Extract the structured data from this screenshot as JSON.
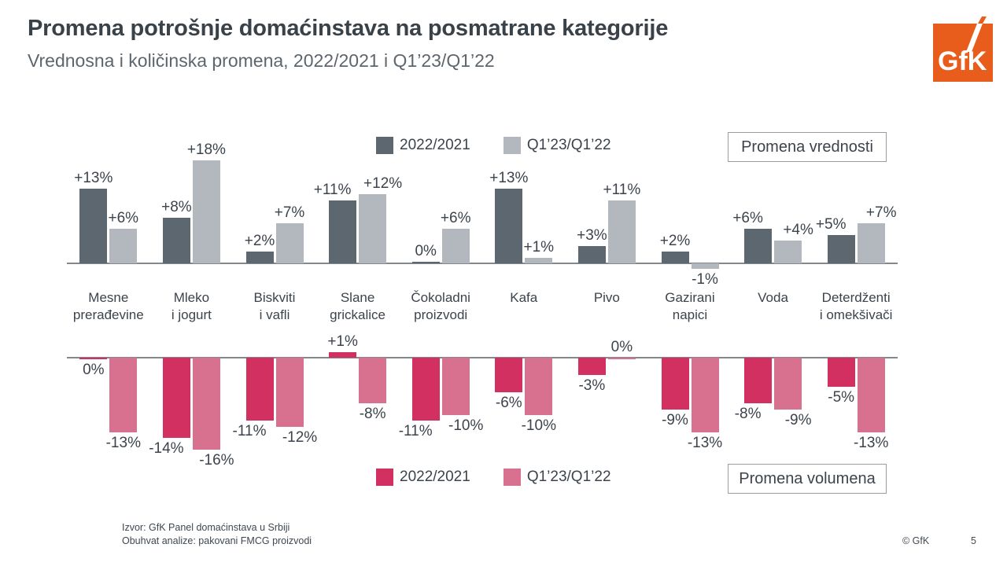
{
  "title": "Promena potrošnje domaćinstava na posmatrane kategorije",
  "subtitle": "Vrednosna i količinska promena, 2022/2021 i Q1’23/Q1’22",
  "logo": {
    "text": "GfK",
    "color": "#e85c1c"
  },
  "categories": [
    "Mesne\nprerađevine",
    "Mleko\ni jogurt",
    "Biskviti\ni vafli",
    "Slane\ngrickalice",
    "Čokoladni\nproizvodi",
    "Kafa",
    "Pivo",
    "Gazirani\nnapici",
    "Voda",
    "Deterdženti\ni omekšivači"
  ],
  "chart_data": [
    {
      "type": "bar",
      "title": "Promena vrednosti",
      "legend_position": "top",
      "categories": [
        "Mesne prerađevine",
        "Mleko i jogurt",
        "Biskviti i vafli",
        "Slane grickalice",
        "Čokoladni proizvodi",
        "Kafa",
        "Pivo",
        "Gazirani napici",
        "Voda",
        "Deterdženti i omekšivači"
      ],
      "unit": "%",
      "series": [
        {
          "name": "2022/2021",
          "color": "#5d6770",
          "values": [
            13,
            8,
            2,
            11,
            0,
            13,
            3,
            2,
            6,
            5
          ],
          "labels": [
            "+13%",
            "+8%",
            "+2%",
            "+11%",
            "0%",
            "+13%",
            "+3%",
            "+2%",
            "+6%",
            "+5%"
          ]
        },
        {
          "name": "Q1’23/Q1’22",
          "color": "#b2b8bd",
          "values": [
            6,
            18,
            7,
            12,
            6,
            1,
            11,
            -1,
            4,
            7
          ],
          "labels": [
            "+6%",
            "+18%",
            "+7%",
            "+12%",
            "+6%",
            "+1%",
            "+11%",
            "-1%",
            "+4%",
            "+7%"
          ]
        }
      ]
    },
    {
      "type": "bar",
      "title": "Promena volumena",
      "legend_position": "bottom",
      "categories": [
        "Mesne prerađevine",
        "Mleko i jogurt",
        "Biskviti i vafli",
        "Slane grickalice",
        "Čokoladni proizvodi",
        "Kafa",
        "Pivo",
        "Gazirani napici",
        "Voda",
        "Deterdženti i omekšivači"
      ],
      "unit": "%",
      "series": [
        {
          "name": "2022/2021",
          "color": "#d23061",
          "values": [
            0,
            -14,
            -11,
            1,
            -11,
            -6,
            -3,
            -9,
            -8,
            -5
          ],
          "labels": [
            "0%",
            "-14%",
            "-11%",
            "+1%",
            "-11%",
            "-6%",
            "-3%",
            "-9%",
            "-8%",
            "-5%"
          ]
        },
        {
          "name": "Q1’23/Q1’22",
          "color": "#d8708f",
          "values": [
            -13,
            -16,
            -12,
            -8,
            -10,
            -10,
            0,
            -13,
            -9,
            -13
          ],
          "labels": [
            "-13%",
            "-16%",
            "-12%",
            "-8%",
            "-10%",
            "-10%",
            "0%",
            "-13%",
            "-9%",
            "-13%"
          ]
        }
      ]
    }
  ],
  "footer": {
    "source_line1": "Izvor: GfK Panel domaćinstava u Srbiji",
    "source_line2": "Obuhvat analize: pakovani FMCG proizvodi",
    "copyright": "© GfK",
    "page": "5"
  }
}
